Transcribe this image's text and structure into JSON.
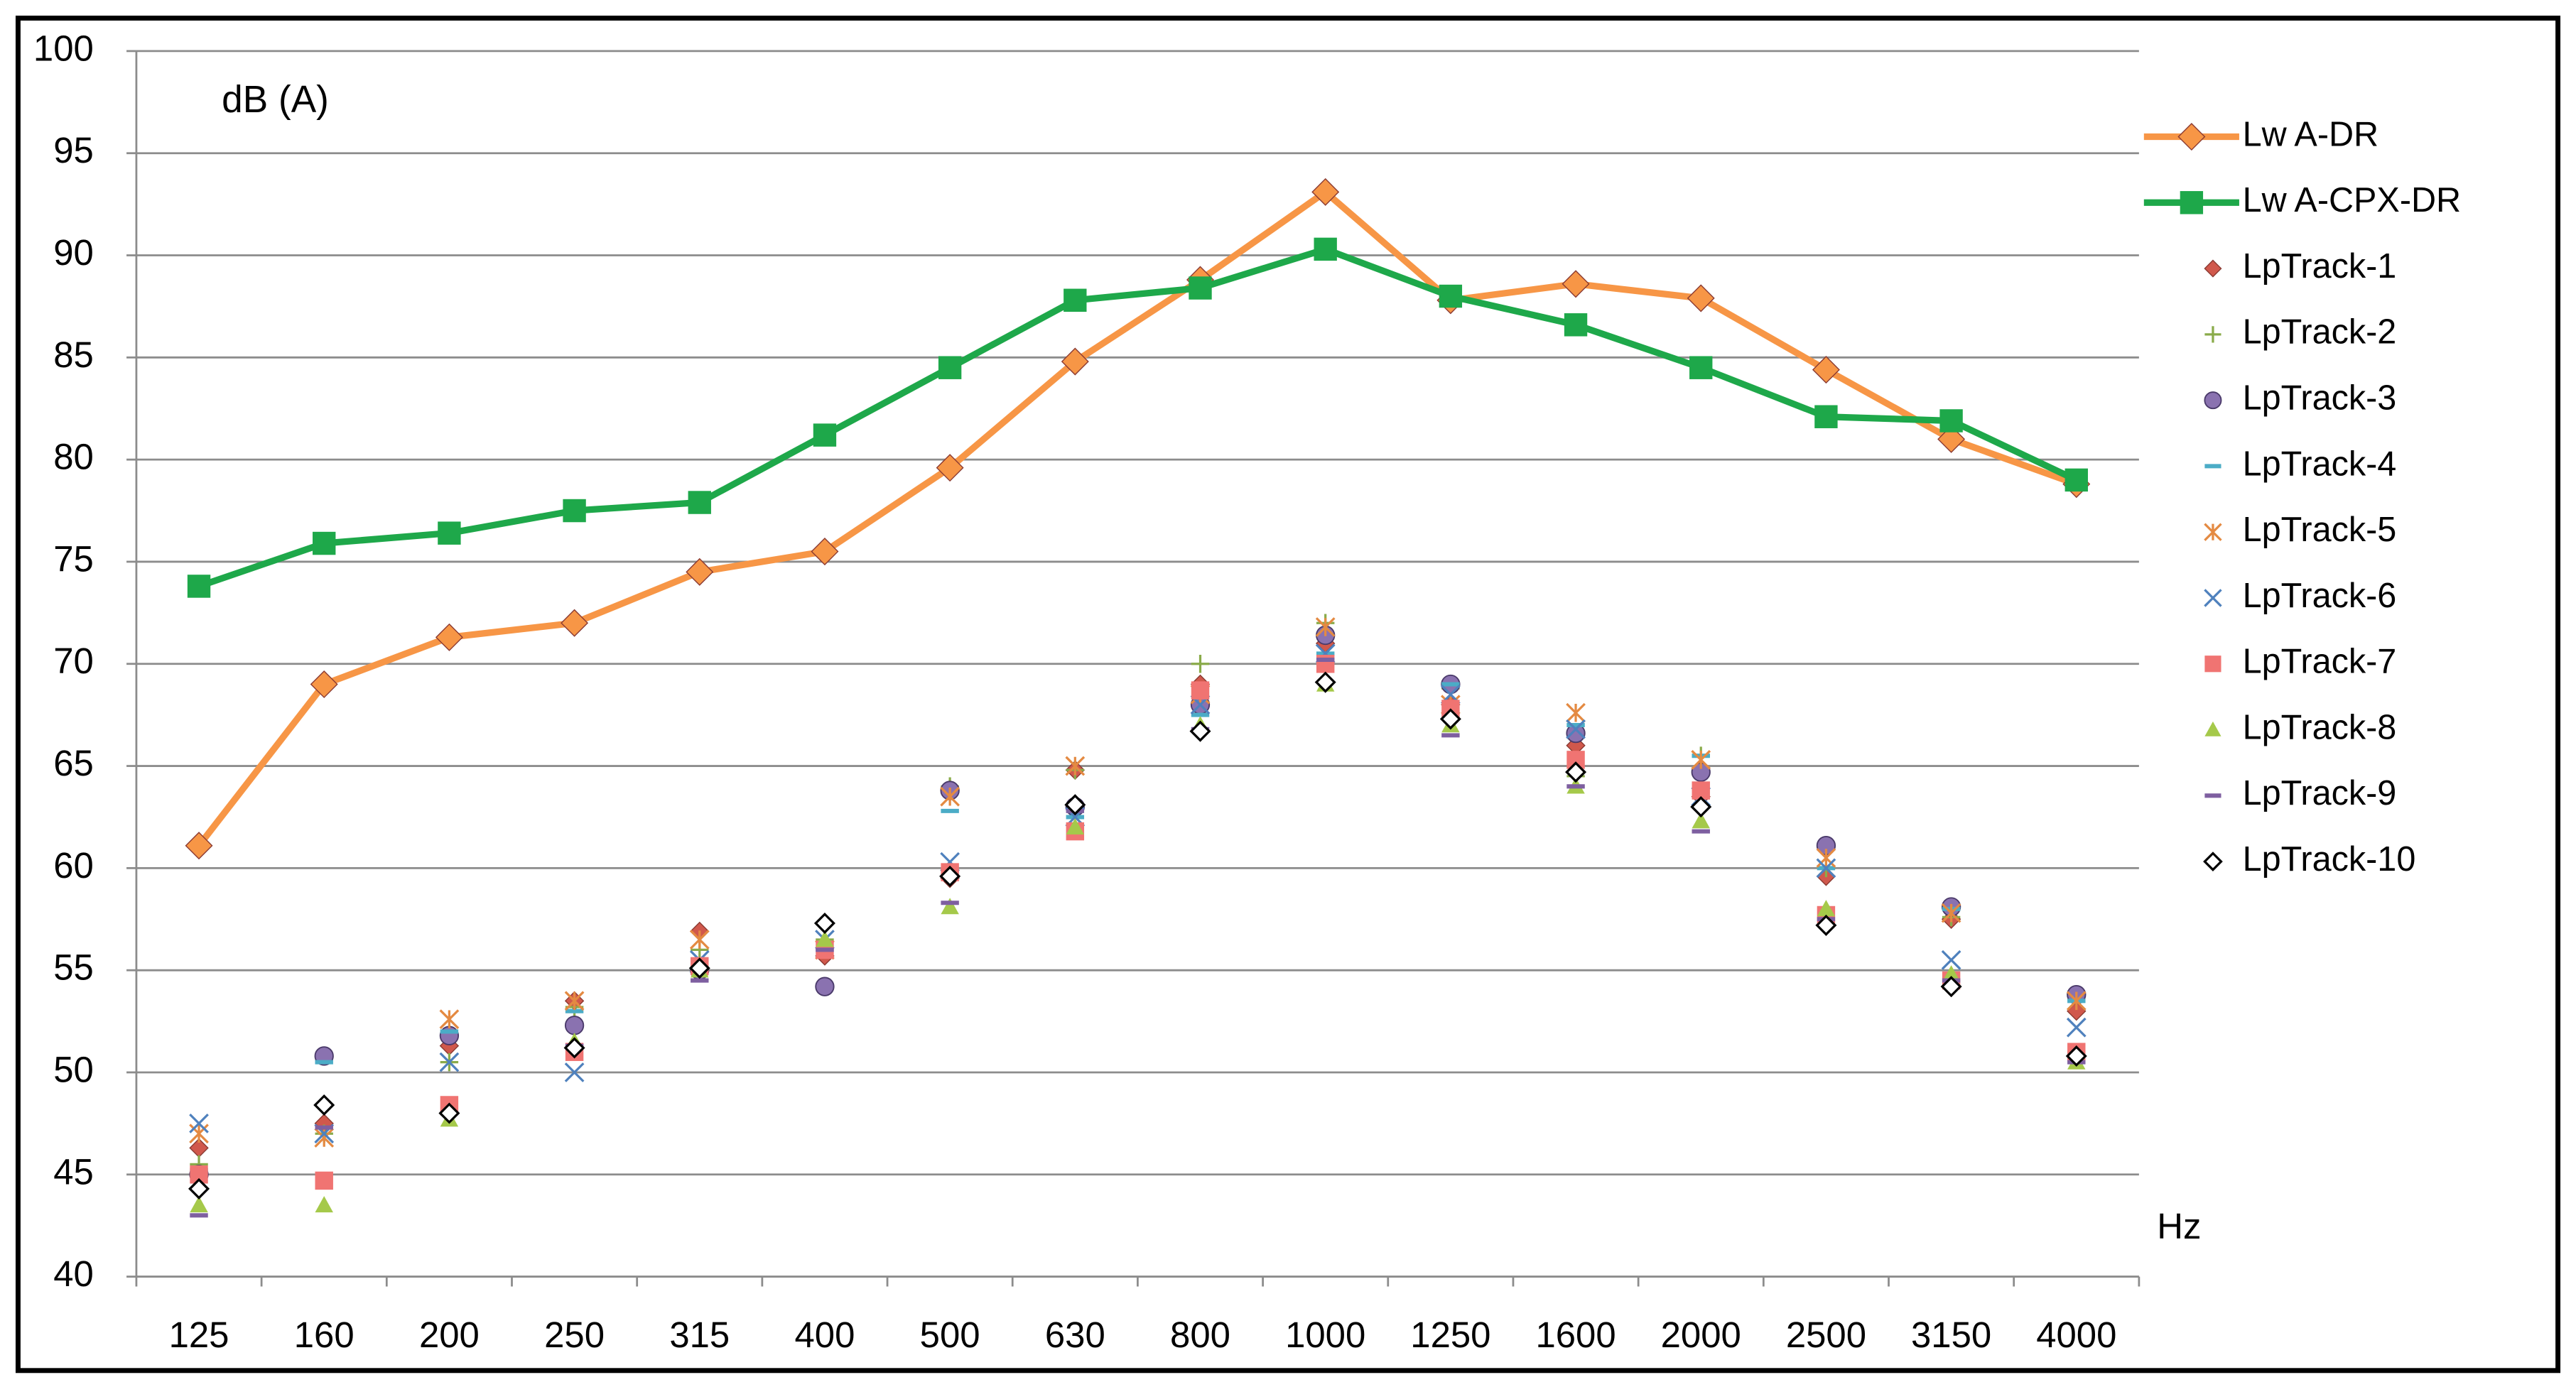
{
  "chart_data": {
    "type": "line",
    "y_label": "dB (A)",
    "x_label": "Hz",
    "categories": [
      "125",
      "160",
      "200",
      "250",
      "315",
      "400",
      "500",
      "630",
      "800",
      "1000",
      "1250",
      "1600",
      "2000",
      "2500",
      "3150",
      "4000"
    ],
    "ylim": [
      40,
      100
    ],
    "yticks": [
      40,
      45,
      50,
      55,
      60,
      65,
      70,
      75,
      80,
      85,
      90,
      95,
      100
    ],
    "grid": true,
    "legend": "right",
    "series": [
      {
        "name": "Lw A-DR",
        "color": "#f79646",
        "style": "line",
        "marker": "diamond",
        "values": [
          61.1,
          69.0,
          71.3,
          72.0,
          74.5,
          75.5,
          79.6,
          84.8,
          88.8,
          93.1,
          87.8,
          88.6,
          87.9,
          84.4,
          81.0,
          78.8
        ]
      },
      {
        "name": "Lw A-CPX-DR",
        "color": "#1ea84a",
        "style": "line",
        "marker": "square",
        "values": [
          73.8,
          75.9,
          76.4,
          77.5,
          77.9,
          81.2,
          84.5,
          87.8,
          88.4,
          90.3,
          88.0,
          86.6,
          84.5,
          82.1,
          81.9,
          79.0
        ]
      },
      {
        "name": "LpTrack-1",
        "color": "#d0584c",
        "style": "scatter",
        "marker": "diamond",
        "values": [
          46.3,
          47.5,
          51.3,
          53.5,
          56.9,
          55.7,
          59.5,
          64.8,
          69.0,
          71.0,
          68.0,
          66.0,
          63.5,
          59.6,
          57.5,
          53.0
        ]
      },
      {
        "name": "LpTrack-2",
        "color": "#8aab4a",
        "style": "scatter",
        "marker": "plus",
        "values": [
          45.5,
          47.0,
          50.5,
          53.2,
          56.0,
          56.5,
          64.0,
          64.8,
          70.0,
          72.0,
          68.8,
          64.5,
          65.5,
          60.0,
          57.6,
          51.0
        ]
      },
      {
        "name": "LpTrack-3",
        "color": "#8a72b0",
        "style": "scatter",
        "marker": "circle",
        "values": [
          45.0,
          50.8,
          51.8,
          52.3,
          55.0,
          54.2,
          63.8,
          63.0,
          68.0,
          71.4,
          69.0,
          66.6,
          64.7,
          61.1,
          58.1,
          53.8
        ]
      },
      {
        "name": "LpTrack-4",
        "color": "#4bacc6",
        "style": "scatter",
        "marker": "dash",
        "values": [
          45.2,
          50.5,
          52.0,
          53.0,
          55.5,
          56.0,
          62.8,
          62.5,
          67.5,
          70.5,
          69.0,
          67.0,
          65.5,
          60.0,
          58.0,
          53.5
        ]
      },
      {
        "name": "LpTrack-5",
        "color": "#e48a42",
        "style": "scatter",
        "marker": "asterisk",
        "values": [
          47.0,
          46.8,
          52.6,
          53.5,
          56.5,
          56.0,
          63.5,
          65.0,
          68.5,
          71.8,
          68.0,
          67.6,
          65.3,
          60.5,
          57.8,
          53.5
        ]
      },
      {
        "name": "LpTrack-6",
        "color": "#4f81bd",
        "style": "scatter",
        "marker": "x",
        "values": [
          47.5,
          47.0,
          50.5,
          50.0,
          55.5,
          56.5,
          60.3,
          62.5,
          68.0,
          70.5,
          68.5,
          66.8,
          63.5,
          60.0,
          55.5,
          52.2
        ]
      },
      {
        "name": "LpTrack-7",
        "color": "#f07472",
        "style": "scatter",
        "marker": "square",
        "values": [
          45.0,
          44.7,
          48.4,
          51.0,
          55.2,
          56.0,
          59.8,
          61.8,
          68.7,
          70.0,
          67.8,
          65.3,
          63.8,
          57.7,
          54.5,
          51.0
        ]
      },
      {
        "name": "LpTrack-8",
        "color": "#a5c94a",
        "style": "scatter",
        "marker": "triangle",
        "values": [
          43.5,
          43.5,
          47.7,
          51.5,
          55.0,
          56.5,
          58.1,
          62.0,
          67.0,
          69.0,
          67.0,
          64.0,
          62.3,
          58.0,
          54.8,
          50.5
        ]
      },
      {
        "name": "LpTrack-9",
        "color": "#7e5fa0",
        "style": "scatter",
        "marker": "dash",
        "values": [
          43.0,
          47.3,
          48.0,
          51.3,
          54.5,
          56.0,
          58.3,
          62.8,
          66.8,
          70.2,
          66.5,
          64.0,
          61.8,
          57.5,
          54.5,
          50.5
        ]
      },
      {
        "name": "LpTrack-10",
        "color": "#000000",
        "style": "scatter",
        "marker": "diamond-open",
        "values": [
          44.3,
          48.4,
          48.0,
          51.2,
          55.1,
          57.3,
          59.6,
          63.1,
          66.7,
          69.1,
          67.3,
          64.7,
          63.0,
          57.2,
          54.2,
          50.8
        ]
      }
    ]
  }
}
